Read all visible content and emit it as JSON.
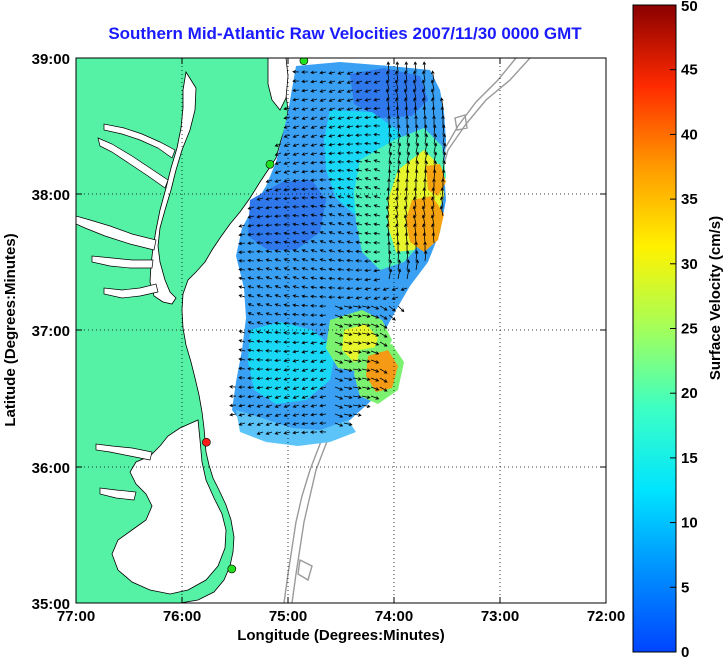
{
  "title": "Southern Mid-Atlantic Raw Velocities 2007/11/30 0000 GMT",
  "x_axis": {
    "label": "Longitude (Degrees:Minutes)",
    "ticks": [
      "77:00",
      "76:00",
      "75:00",
      "74:00",
      "73:00",
      "72:00"
    ]
  },
  "y_axis": {
    "label": "Latitude (Degrees:Minutes)",
    "ticks": [
      "39:00",
      "38:00",
      "37:00",
      "36:00",
      "35:00"
    ]
  },
  "colorbar": {
    "label": "Surface Velocity (cm/s)",
    "ticks": [
      "0",
      "5",
      "10",
      "15",
      "20",
      "25",
      "30",
      "35",
      "40",
      "45",
      "50"
    ],
    "colormap": "jet"
  },
  "map": {
    "lon_range": [
      -77,
      -72
    ],
    "lat_range": [
      35,
      39
    ],
    "land_color": "#55f2a6",
    "coast_color": "#000000",
    "bathymetry_color": "#9a9a9a",
    "grid": "dotted",
    "stations": [
      {
        "marker": "green-dot",
        "lon": -74.85,
        "lat": 38.98
      },
      {
        "marker": "green-dot",
        "lon": -75.17,
        "lat": 38.22
      },
      {
        "marker": "red-dot",
        "lon": -75.77,
        "lat": 36.18
      },
      {
        "marker": "green-dot",
        "lon": -75.53,
        "lat": 35.25
      }
    ]
  }
}
